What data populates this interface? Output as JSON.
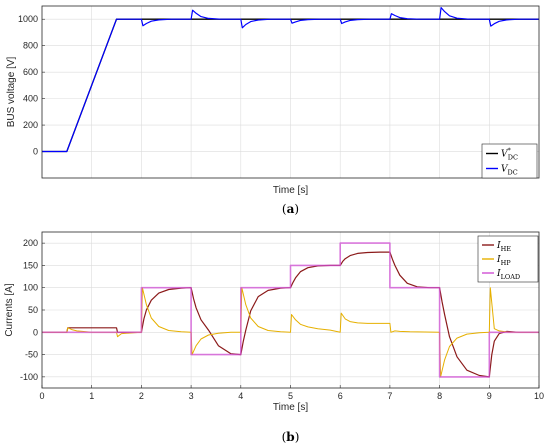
{
  "chart_data": [
    {
      "type": "line",
      "caption_letter": "a",
      "ylabel": "BUS voltage [V]",
      "xlabel": "Time [s]",
      "xlim": [
        0,
        10
      ],
      "ylim": [
        -200,
        1100
      ],
      "yticks": [
        0,
        200,
        400,
        600,
        800,
        1000
      ],
      "xticks_shown": false,
      "grid": true,
      "legend_position": "bottom-right",
      "series": [
        {
          "name": "V*DC",
          "legend_main": "V",
          "legend_sup": "*",
          "legend_sub": "DC",
          "color": "#000000",
          "x": [
            0,
            0.5,
            1.5,
            10
          ],
          "y": [
            0,
            0,
            1000,
            1000
          ]
        },
        {
          "name": "VDC",
          "legend_main": "V",
          "legend_sup": "",
          "legend_sub": "DC",
          "color": "#0000ff",
          "x": [
            0,
            0.5,
            1.5,
            2.0,
            2.03,
            2.1,
            2.2,
            2.35,
            2.6,
            3.0,
            3.03,
            3.1,
            3.2,
            3.35,
            3.6,
            4.0,
            4.03,
            4.1,
            4.2,
            4.35,
            4.6,
            5.0,
            5.03,
            5.1,
            5.2,
            5.35,
            5.6,
            6.0,
            6.03,
            6.1,
            6.2,
            6.35,
            6.6,
            7.0,
            7.03,
            7.1,
            7.2,
            7.35,
            7.6,
            8.0,
            8.03,
            8.1,
            8.2,
            8.35,
            8.6,
            9.0,
            9.03,
            9.1,
            9.2,
            9.35,
            9.6,
            10
          ],
          "y": [
            0,
            0,
            1000,
            1000,
            950,
            968,
            985,
            995,
            1000,
            1000,
            1068,
            1045,
            1020,
            1006,
            1000,
            1000,
            935,
            960,
            982,
            994,
            1000,
            1000,
            970,
            980,
            991,
            997,
            1000,
            1000,
            968,
            980,
            991,
            997,
            1000,
            1000,
            1042,
            1028,
            1012,
            1004,
            1000,
            1000,
            1088,
            1058,
            1026,
            1008,
            1000,
            1000,
            948,
            966,
            984,
            995,
            1000,
            1000
          ]
        }
      ]
    },
    {
      "type": "line",
      "caption_letter": "b",
      "ylabel": "Currents [A]",
      "xlabel": "Time [s]",
      "xlim": [
        0,
        10
      ],
      "ylim": [
        -125,
        225
      ],
      "yticks": [
        -100,
        -50,
        0,
        50,
        100,
        150,
        200
      ],
      "xticks": [
        0,
        1,
        2,
        3,
        4,
        5,
        6,
        7,
        8,
        9,
        10
      ],
      "grid": true,
      "legend_position": "top-right",
      "series": [
        {
          "name": "IHE",
          "legend_main": "I",
          "legend_sub": "HE",
          "color": "#8b1a1a",
          "x": [
            0,
            0.5,
            0.52,
            1.5,
            1.52,
            2.0,
            2.05,
            2.1,
            2.2,
            2.35,
            2.55,
            2.8,
            3.0,
            3.05,
            3.1,
            3.2,
            3.35,
            3.55,
            3.8,
            4.0,
            4.05,
            4.1,
            4.2,
            4.35,
            4.55,
            4.8,
            5.0,
            5.05,
            5.1,
            5.2,
            5.35,
            5.55,
            5.8,
            6.0,
            6.05,
            6.1,
            6.2,
            6.35,
            6.55,
            6.8,
            7.0,
            7.05,
            7.1,
            7.2,
            7.35,
            7.55,
            7.8,
            8.0,
            8.05,
            8.1,
            8.2,
            8.35,
            8.55,
            8.8,
            9.0,
            9.05,
            9.1,
            9.2,
            9.35,
            9.6,
            10
          ],
          "y": [
            0,
            0,
            10,
            10,
            0,
            0,
            30,
            50,
            72,
            88,
            96,
            99,
            100,
            75,
            55,
            28,
            5,
            -30,
            -48,
            -50,
            -20,
            5,
            48,
            80,
            94,
            99,
            100,
            112,
            122,
            136,
            145,
            149,
            150,
            150,
            159,
            165,
            172,
            177,
            179,
            180,
            180,
            164,
            150,
            128,
            110,
            102,
            100,
            100,
            68,
            40,
            -10,
            -55,
            -85,
            -97,
            -100,
            -50,
            -20,
            -3,
            2,
            0,
            0
          ]
        },
        {
          "name": "IHP",
          "legend_main": "I",
          "legend_sub": "HP",
          "color": "#e6b000",
          "x": [
            0,
            0.5,
            0.52,
            0.6,
            0.7,
            1.0,
            1.5,
            1.52,
            1.6,
            2.0,
            2.02,
            2.1,
            2.2,
            2.35,
            2.55,
            2.8,
            3.0,
            3.02,
            3.1,
            3.2,
            3.35,
            3.55,
            3.8,
            4.0,
            4.02,
            4.1,
            4.2,
            4.35,
            4.55,
            4.8,
            5.0,
            5.02,
            5.1,
            5.2,
            5.35,
            5.55,
            5.8,
            6.0,
            6.02,
            6.1,
            6.2,
            6.35,
            6.55,
            7.0,
            7.02,
            7.1,
            7.2,
            7.4,
            8.0,
            8.02,
            8.1,
            8.2,
            8.35,
            8.55,
            8.8,
            9.0,
            9.02,
            9.1,
            9.2,
            9.4,
            10
          ],
          "y": [
            0,
            0,
            10,
            6,
            3,
            0,
            0,
            -10,
            -3,
            0,
            100,
            62,
            32,
            13,
            4,
            1,
            0,
            -50,
            -30,
            -15,
            -6,
            -2,
            0,
            0,
            100,
            62,
            32,
            13,
            4,
            1,
            0,
            40,
            28,
            18,
            12,
            8,
            5,
            0,
            43,
            30,
            24,
            21,
            20,
            20,
            0,
            3,
            2,
            1,
            0,
            -100,
            -62,
            -32,
            -13,
            -4,
            -1,
            0,
            100,
            8,
            3,
            0,
            0
          ]
        },
        {
          "name": "ILOAD",
          "legend_main": "I",
          "legend_sub": "LOAD",
          "color": "#d04fd4",
          "x": [
            0,
            2,
            2,
            3,
            3,
            4,
            4,
            5,
            5,
            6,
            6,
            7,
            7,
            8,
            8,
            9,
            9,
            10
          ],
          "y": [
            0,
            0,
            100,
            100,
            -50,
            -50,
            100,
            100,
            150,
            150,
            200,
            200,
            100,
            100,
            -100,
            -100,
            0,
            0
          ]
        }
      ]
    }
  ]
}
